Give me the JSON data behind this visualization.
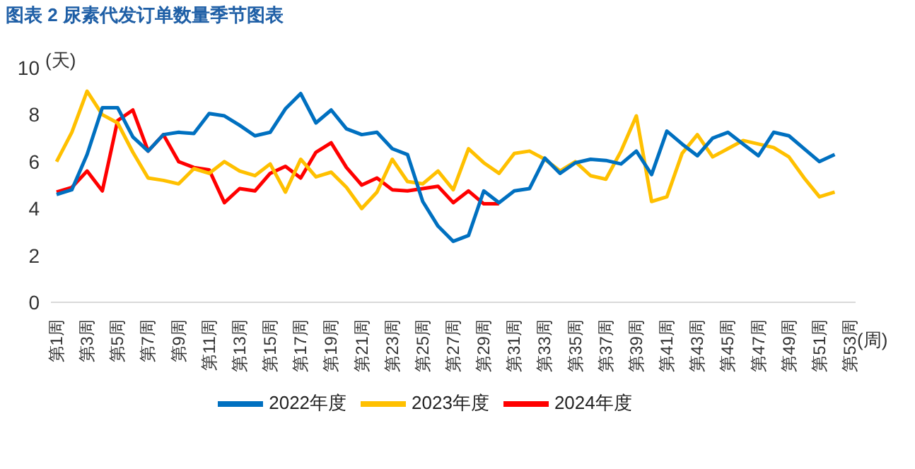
{
  "chart_data": {
    "type": "line",
    "title": "图表 2 尿素代发订单数量季节图表",
    "ylabel": "(天)",
    "xlabel": "(周)",
    "categories": [
      "第1周",
      null,
      "第3周",
      null,
      "第5周",
      null,
      "第7周",
      null,
      "第9周",
      null,
      "第11周",
      null,
      "第13周",
      null,
      "第15周",
      null,
      "第17周",
      null,
      "第19周",
      null,
      "第21周",
      null,
      "第23周",
      null,
      "第25周",
      null,
      "第27周",
      null,
      "第29周",
      null,
      "第31周",
      null,
      "第33周",
      null,
      "第35周",
      null,
      "第37周",
      null,
      "第39周",
      null,
      "第41周",
      null,
      "第43周",
      null,
      "第45周",
      null,
      "第47周",
      null,
      "第49周",
      null,
      "第51周",
      null,
      "第53周"
    ],
    "series": [
      {
        "name": "2024年度",
        "color": "#ff0000",
        "values": [
          4.7,
          4.9,
          5.6,
          4.75,
          7.75,
          8.2,
          6.45,
          7.15,
          6.0,
          5.75,
          5.65,
          4.25,
          4.85,
          4.75,
          5.5,
          5.8,
          5.3,
          6.4,
          6.8,
          5.75,
          5.0,
          5.3,
          4.8,
          4.75,
          4.85,
          4.95,
          4.25,
          4.75,
          4.2,
          4.2,
          null,
          null,
          null,
          null,
          null,
          null,
          null,
          null,
          null,
          null,
          null,
          null,
          null,
          null,
          null,
          null,
          null,
          null,
          null,
          null,
          null,
          null,
          null
        ]
      },
      {
        "name": "2023年度",
        "color": "#ffc000",
        "values": [
          6.0,
          7.25,
          9.0,
          8.0,
          7.65,
          6.4,
          5.3,
          5.2,
          5.05,
          5.7,
          5.5,
          6.0,
          5.6,
          5.4,
          5.9,
          4.7,
          6.1,
          5.35,
          5.55,
          4.9,
          4.0,
          4.7,
          6.1,
          5.15,
          5.05,
          5.6,
          4.8,
          6.55,
          5.95,
          5.5,
          6.35,
          6.45,
          6.1,
          5.6,
          6.0,
          5.4,
          5.25,
          6.45,
          7.95,
          4.3,
          4.5,
          6.35,
          7.15,
          6.2,
          6.55,
          6.9,
          6.75,
          6.6,
          6.2,
          5.3,
          4.5,
          4.7,
          null
        ]
      },
      {
        "name": "2022年度",
        "color": "#0070c0",
        "values": [
          4.6,
          4.8,
          6.3,
          8.3,
          8.3,
          7.05,
          6.45,
          7.15,
          7.25,
          7.2,
          8.05,
          7.95,
          7.55,
          7.1,
          7.25,
          8.25,
          8.9,
          7.65,
          8.2,
          7.4,
          7.15,
          7.25,
          6.55,
          6.3,
          4.3,
          3.25,
          2.6,
          2.85,
          4.75,
          4.25,
          4.75,
          4.85,
          6.15,
          5.5,
          5.95,
          6.1,
          6.05,
          5.9,
          6.45,
          5.45,
          7.3,
          6.75,
          6.25,
          7.0,
          7.25,
          6.75,
          6.25,
          7.25,
          7.1,
          6.55,
          6.0,
          6.3,
          null
        ]
      }
    ],
    "ylim": [
      0,
      10
    ],
    "yticks": [
      0,
      2,
      4,
      6,
      8,
      10
    ],
    "grid": false,
    "legend": "bottom",
    "marker": "none",
    "line_style": "solid"
  }
}
